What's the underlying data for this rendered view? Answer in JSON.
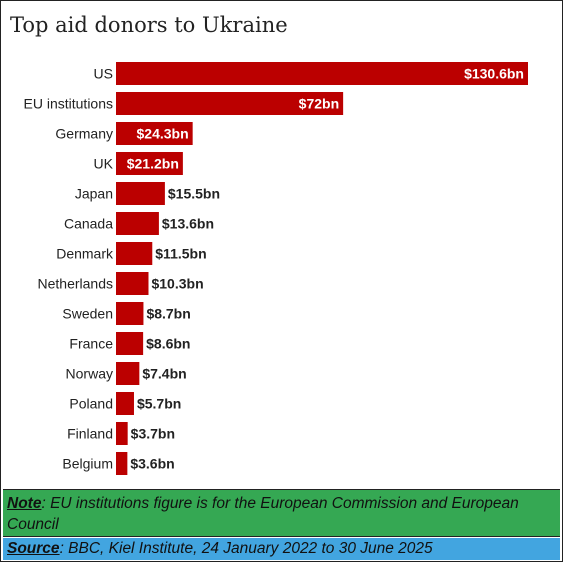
{
  "chart_data": {
    "type": "bar",
    "orientation": "horizontal",
    "title": "Top aid donors to Ukraine",
    "categories": [
      "US",
      "EU institutions",
      "Germany",
      "UK",
      "Japan",
      "Canada",
      "Denmark",
      "Netherlands",
      "Sweden",
      "France",
      "Norway",
      "Poland",
      "Finland",
      "Belgium"
    ],
    "values": [
      130.6,
      72,
      24.3,
      21.2,
      15.5,
      13.6,
      11.5,
      10.3,
      8.7,
      8.6,
      7.4,
      5.7,
      3.7,
      3.6
    ],
    "value_labels": [
      "$130.6bn",
      "$72bn",
      "$24.3bn",
      "$21.2bn",
      "$15.5bn",
      "$13.6bn",
      "$11.5bn",
      "$10.3bn",
      "$8.7bn",
      "$8.6bn",
      "$7.4bn",
      "$5.7bn",
      "$3.7bn",
      "$3.6bn"
    ],
    "bar_color": "#bb0000",
    "grid": false,
    "xlim": [
      0,
      130.6
    ]
  },
  "note": {
    "label": "Note",
    "text": ": EU institutions figure is for the European Commission and European Council",
    "color": "#35a853"
  },
  "source": {
    "label": "Source",
    "text": ": BBC, Kiel Institute, 24 January 2022 to 30 June 2025",
    "color": "#42a5e0"
  }
}
